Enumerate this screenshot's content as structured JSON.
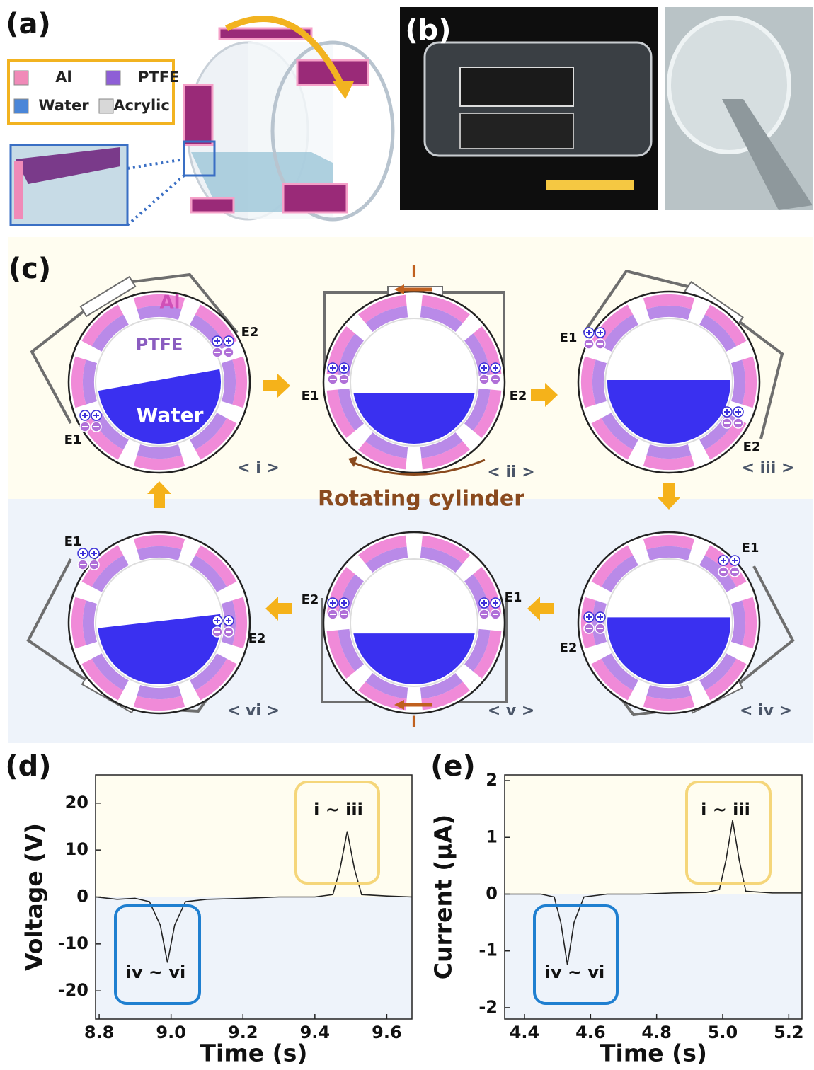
{
  "panels": {
    "a": {
      "label": "(a)",
      "legend": [
        "Al",
        "PTFE",
        "Water",
        "Acrylic"
      ]
    },
    "b": {
      "label": "(b)"
    },
    "c": {
      "label": "(c)",
      "al": "Al",
      "ptfe": "PTFE",
      "water": "Water",
      "current": "I",
      "caption": "Rotating cylinder",
      "states": [
        {
          "label": "< i >",
          "electrodes": [
            "E1",
            "E2"
          ]
        },
        {
          "label": "< ii >",
          "electrodes": [
            "E1",
            "E2"
          ]
        },
        {
          "label": "< iii >",
          "electrodes": [
            "E1",
            "E2"
          ]
        },
        {
          "label": "< iv >",
          "electrodes": [
            "E1",
            "E2"
          ]
        },
        {
          "label": "< v >",
          "electrodes": [
            "E1",
            "E2"
          ]
        },
        {
          "label": "< vi >",
          "electrodes": [
            "E1",
            "E2"
          ]
        }
      ]
    },
    "d": {
      "label": "(d)"
    },
    "e": {
      "label": "(e)"
    }
  },
  "chart_data": [
    {
      "type": "line",
      "xlabel": "Time (s)",
      "ylabel": "Voltage (V)",
      "color": "#222222",
      "x": [
        8.79,
        8.85,
        8.9,
        8.94,
        8.97,
        8.99,
        9.01,
        9.04,
        9.1,
        9.2,
        9.3,
        9.4,
        9.45,
        9.47,
        9.49,
        9.51,
        9.53,
        9.6,
        9.67
      ],
      "values": [
        0,
        -0.5,
        -0.3,
        -1,
        -6,
        -14,
        -6,
        -1,
        -0.5,
        -0.3,
        0,
        0,
        0.5,
        6,
        14,
        6,
        0.5,
        0.2,
        0
      ],
      "xlim": [
        8.79,
        9.67
      ],
      "xticks": [
        8.8,
        {
          "value": 9,
          "label": "9.0"
        },
        9.2,
        9.4,
        9.6
      ],
      "ylim": [
        -26,
        26
      ],
      "yticks": [
        -20,
        -10,
        0,
        10,
        20
      ],
      "annotations": [
        "i ~ iii",
        "iv ~ vi"
      ]
    },
    {
      "type": "line",
      "xlabel": "Time (s)",
      "ylabel": "Current (μA)",
      "color": "#222222",
      "x": [
        4.34,
        4.4,
        4.45,
        4.49,
        4.51,
        4.53,
        4.55,
        4.58,
        4.65,
        4.75,
        4.85,
        4.95,
        4.99,
        5.01,
        5.03,
        5.05,
        5.07,
        5.15,
        5.24
      ],
      "values": [
        0,
        0,
        0,
        -0.05,
        -0.5,
        -1.25,
        -0.5,
        -0.05,
        0,
        0,
        0.02,
        0.03,
        0.08,
        0.6,
        1.3,
        0.6,
        0.05,
        0.02,
        0.02
      ],
      "xlim": [
        4.34,
        5.24
      ],
      "xticks": [
        4.4,
        4.6,
        4.8,
        {
          "value": 5,
          "label": "5.0"
        },
        5.2
      ],
      "ylim": [
        -2.2,
        2.1
      ],
      "yticks": [
        -2,
        -1,
        0,
        1,
        2
      ],
      "annotations": [
        "i ~ iii",
        "iv ~ vi"
      ]
    }
  ]
}
